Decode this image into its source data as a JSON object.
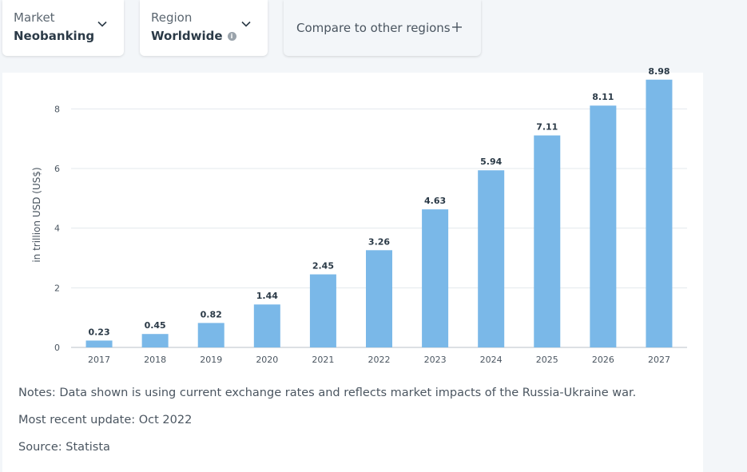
{
  "filters": {
    "market": {
      "label": "Market",
      "value": "Neobanking"
    },
    "region": {
      "label": "Region",
      "value": "Worldwide",
      "info_icon": "i"
    },
    "compare_label": "Compare to other regions"
  },
  "icons": {
    "chevron": "chevron-down-icon",
    "plus": "plus-icon",
    "info": "info-icon"
  },
  "colors": {
    "bar": "#7ab8e8",
    "grid": "#e3e8ed",
    "axis": "#b9c1c8"
  },
  "chart_data": {
    "type": "bar",
    "categories": [
      "2017",
      "2018",
      "2019",
      "2020",
      "2021",
      "2022",
      "2023",
      "2024",
      "2025",
      "2026",
      "2027"
    ],
    "values": [
      0.23,
      0.45,
      0.82,
      1.44,
      2.45,
      3.26,
      4.63,
      5.94,
      7.11,
      8.11,
      8.98
    ],
    "value_labels": [
      "0.23",
      "0.45",
      "0.82",
      "1.44",
      "2.45",
      "3.26",
      "4.63",
      "5.94",
      "7.11",
      "8.11",
      "8.98"
    ],
    "title": "",
    "xlabel": "",
    "ylabel": "in trillion USD (US$)",
    "ylim": [
      0,
      9
    ],
    "yticks": [
      0,
      2,
      4,
      6,
      8
    ],
    "grid": true,
    "legend": "none"
  },
  "notes": {
    "notes_text": "Notes: Data shown is using current exchange rates and reflects market impacts of the Russia-Ukraine war.",
    "update_text": "Most recent update: Oct 2022",
    "source_text": "Source: Statista"
  }
}
